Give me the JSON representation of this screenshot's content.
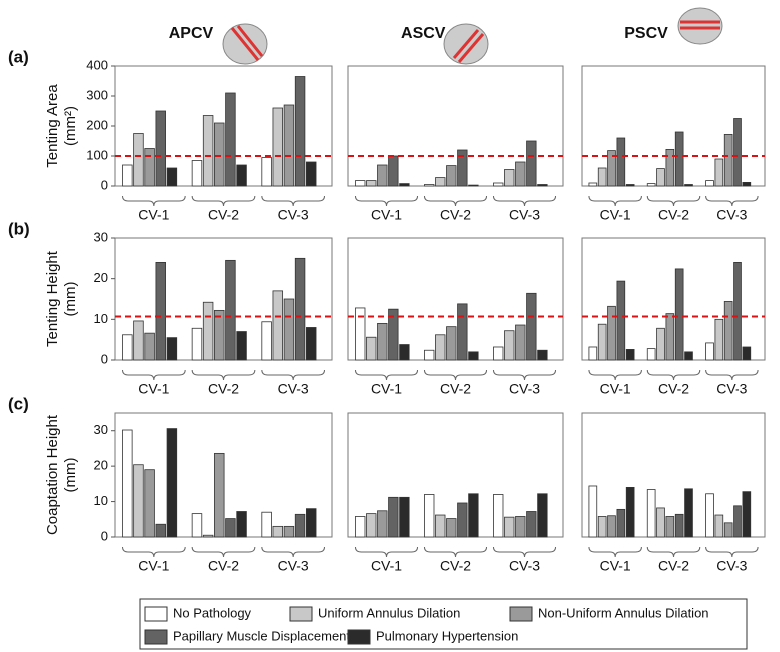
{
  "columns": [
    "APCV",
    "ASCV",
    "PSCV"
  ],
  "rows": [
    {
      "label": "(a)",
      "ylabel": [
        "Tenting Area",
        "(mm²)"
      ],
      "ylim": [
        0,
        400
      ],
      "yticks": [
        0,
        100,
        200,
        300,
        400
      ],
      "reference_line": 100
    },
    {
      "label": "(b)",
      "ylabel": [
        "Tenting Height",
        "(mm)"
      ],
      "ylim": [
        0,
        30
      ],
      "yticks": [
        0,
        10,
        20,
        30
      ],
      "reference_line": 10.7
    },
    {
      "label": "(c)",
      "ylabel": [
        "Coaptation Height",
        "(mm)"
      ],
      "ylim": [
        0,
        35
      ],
      "yticks": [
        0,
        10,
        20,
        30
      ]
    }
  ],
  "legend": [
    {
      "name": "No Pathology",
      "color": "#ffffff"
    },
    {
      "name": "Uniform Annulus Dilation",
      "color": "#c8c8c8"
    },
    {
      "name": "Non-Uniform Annulus Dilation",
      "color": "#9a9a9a"
    },
    {
      "name": "Papillary Muscle Displacement",
      "color": "#636363"
    },
    {
      "name": "Pulmonary Hypertension",
      "color": "#2b2b2b"
    }
  ],
  "chart_data": [
    {
      "type": "bar",
      "categories": [
        "CV-1",
        "CV-2",
        "CV-3"
      ],
      "series": [
        {
          "values": [
            70,
            85,
            95
          ]
        },
        {
          "values": [
            175,
            235,
            260
          ]
        },
        {
          "values": [
            125,
            210,
            270
          ]
        },
        {
          "values": [
            250,
            310,
            365
          ]
        },
        {
          "values": [
            60,
            70,
            80
          ]
        }
      ]
    },
    {
      "type": "bar",
      "categories": [
        "CV-1",
        "CV-2",
        "CV-3"
      ],
      "series": [
        {
          "values": [
            18,
            5,
            10
          ]
        },
        {
          "values": [
            18,
            28,
            55
          ]
        },
        {
          "values": [
            70,
            68,
            80
          ]
        },
        {
          "values": [
            100,
            120,
            150
          ]
        },
        {
          "values": [
            8,
            3,
            5
          ]
        }
      ]
    },
    {
      "type": "bar",
      "categories": [
        "CV-1",
        "CV-2",
        "CV-3"
      ],
      "series": [
        {
          "values": [
            10,
            8,
            18
          ]
        },
        {
          "values": [
            60,
            58,
            90
          ]
        },
        {
          "values": [
            118,
            122,
            172
          ]
        },
        {
          "values": [
            160,
            180,
            225
          ]
        },
        {
          "values": [
            5,
            5,
            12
          ]
        }
      ]
    },
    {
      "type": "bar",
      "categories": [
        "CV-1",
        "CV-2",
        "CV-3"
      ],
      "series": [
        {
          "values": [
            6.2,
            7.8,
            9.4
          ]
        },
        {
          "values": [
            9.6,
            14.2,
            17
          ]
        },
        {
          "values": [
            6.6,
            12.2,
            15
          ]
        },
        {
          "values": [
            24,
            24.5,
            25
          ]
        },
        {
          "values": [
            5.5,
            7,
            8
          ]
        }
      ]
    },
    {
      "type": "bar",
      "categories": [
        "CV-1",
        "CV-2",
        "CV-3"
      ],
      "series": [
        {
          "values": [
            12.8,
            2.4,
            3.2
          ]
        },
        {
          "values": [
            5.6,
            6.2,
            7.2
          ]
        },
        {
          "values": [
            9,
            8.2,
            8.6
          ]
        },
        {
          "values": [
            12.5,
            13.8,
            16.4
          ]
        },
        {
          "values": [
            3.8,
            2,
            2.4
          ]
        }
      ]
    },
    {
      "type": "bar",
      "categories": [
        "CV-1",
        "CV-2",
        "CV-3"
      ],
      "series": [
        {
          "values": [
            3.2,
            2.8,
            4.2
          ]
        },
        {
          "values": [
            8.8,
            7.8,
            10
          ]
        },
        {
          "values": [
            13.2,
            11.4,
            14.4
          ]
        },
        {
          "values": [
            19.4,
            22.4,
            24
          ]
        },
        {
          "values": [
            2.6,
            2,
            3.2
          ]
        }
      ]
    },
    {
      "type": "bar",
      "categories": [
        "CV-1",
        "CV-2",
        "CV-3"
      ],
      "series": [
        {
          "values": [
            30.2,
            6.6,
            7
          ]
        },
        {
          "values": [
            20.4,
            0.5,
            3
          ]
        },
        {
          "values": [
            19,
            23.6,
            3
          ]
        },
        {
          "values": [
            3.6,
            5.2,
            6.4
          ]
        },
        {
          "values": [
            30.6,
            7.2,
            8
          ]
        }
      ]
    },
    {
      "type": "bar",
      "categories": [
        "CV-1",
        "CV-2",
        "CV-3"
      ],
      "series": [
        {
          "values": [
            5.8,
            12,
            12
          ]
        },
        {
          "values": [
            6.6,
            6.2,
            5.6
          ]
        },
        {
          "values": [
            7.4,
            5.2,
            5.8
          ]
        },
        {
          "values": [
            11.2,
            9.6,
            7.2
          ]
        },
        {
          "values": [
            11.2,
            12.2,
            12.2
          ]
        }
      ]
    },
    {
      "type": "bar",
      "categories": [
        "CV-1",
        "CV-2",
        "CV-3"
      ],
      "series": [
        {
          "values": [
            14.4,
            13.4,
            12.2
          ]
        },
        {
          "values": [
            5.8,
            8.2,
            6.2
          ]
        },
        {
          "values": [
            6,
            5.8,
            4
          ]
        },
        {
          "values": [
            7.8,
            6.4,
            8.8
          ]
        },
        {
          "values": [
            14,
            13.6,
            12.8
          ]
        }
      ]
    }
  ]
}
